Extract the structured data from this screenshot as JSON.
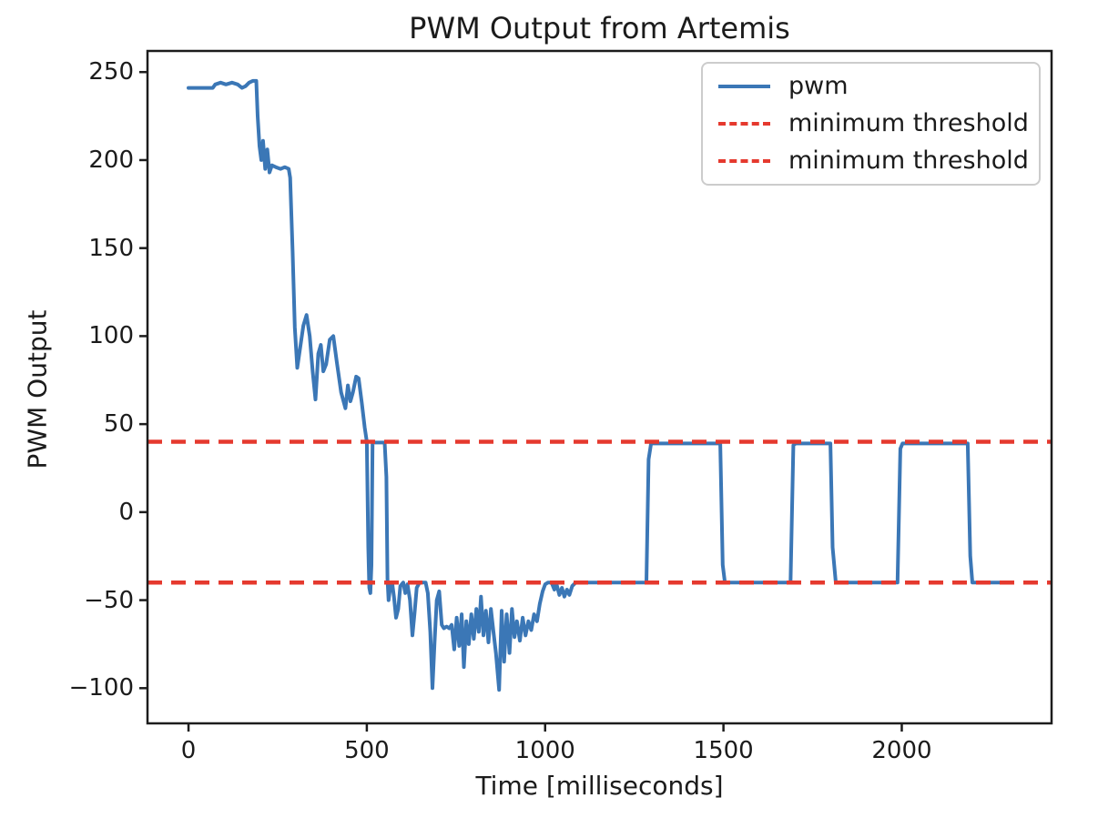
{
  "chart_data": {
    "type": "line",
    "title": "PWM Output from Artemis",
    "xlabel": "Time [milliseconds]",
    "ylabel": "PWM Output",
    "xlim": [
      -115,
      2420
    ],
    "ylim": [
      -120,
      262
    ],
    "xticks": [
      0,
      500,
      1000,
      1500,
      2000
    ],
    "yticks": [
      250,
      200,
      150,
      100,
      50,
      0,
      -50,
      -100
    ],
    "grid": false,
    "legend_position": "upper right",
    "legend": [
      {
        "label": "pwm",
        "style": "solid",
        "color": "#3b77b6"
      },
      {
        "label": "minimum threshold",
        "style": "dashed",
        "color": "#e5392e"
      },
      {
        "label": "minimum threshold",
        "style": "dashed",
        "color": "#e5392e"
      }
    ],
    "series": [
      {
        "name": "pwm",
        "color": "#3b77b6",
        "style": "solid",
        "x": [
          0,
          30,
          55,
          68,
          75,
          90,
          105,
          122,
          138,
          150,
          160,
          170,
          180,
          190,
          194,
          199,
          204,
          209,
          215,
          221,
          227,
          234,
          245,
          258,
          270,
          281,
          285,
          292,
          298,
          305,
          312,
          322,
          331,
          340,
          348,
          356,
          364,
          371,
          378,
          386,
          396,
          406,
          416,
          428,
          440,
          447,
          454,
          461,
          470,
          477,
          486,
          494,
          500,
          504,
          507,
          510,
          513,
          516,
          520,
          550,
          555,
          558,
          561,
          566,
          571,
          576,
          582,
          588,
          594,
          602,
          608,
          614,
          621,
          628,
          634,
          640,
          648,
          656,
          665,
          671,
          678,
          684,
          690,
          696,
          703,
          710,
          716,
          724,
          731,
          738,
          745,
          752,
          759,
          766,
          772,
          779,
          786,
          793,
          800,
          807,
          814,
          820,
          827,
          834,
          841,
          848,
          855,
          862,
          871,
          878,
          885,
          892,
          900,
          907,
          914,
          921,
          929,
          937,
          945,
          953,
          961,
          969,
          977,
          985,
          993,
          1000,
          1008,
          1018,
          1026,
          1032,
          1040,
          1047,
          1054,
          1061,
          1068,
          1076,
          1086,
          1098,
          1110,
          1284,
          1290,
          1297,
          1320,
          1430,
          1491,
          1498,
          1504,
          1560,
          1688,
          1696,
          1703,
          1800,
          1806,
          1815,
          1900,
          1988,
          1996,
          2002,
          2100,
          2185,
          2192,
          2198,
          2250,
          2305
        ],
        "y": [
          241,
          241,
          241,
          241,
          243,
          244,
          243,
          244,
          243,
          241,
          242,
          244,
          245,
          245,
          225,
          208,
          200,
          211,
          195,
          206,
          193,
          197,
          196,
          195,
          196,
          195,
          190,
          148,
          105,
          82,
          92,
          106,
          112,
          100,
          80,
          64,
          90,
          95,
          80,
          84,
          98,
          100,
          85,
          68,
          59,
          72,
          63,
          68,
          77,
          76,
          62,
          48,
          40,
          -20,
          -43,
          -46,
          -30,
          39,
          39.5,
          39.5,
          20,
          -38,
          -50,
          -42,
          -40,
          -48,
          -60,
          -55,
          -42,
          -40,
          -46,
          -41,
          -50,
          -70,
          -57,
          -43,
          -40,
          -40,
          -40,
          -46,
          -68,
          -100,
          -74,
          -50,
          -45,
          -64,
          -66,
          -65,
          -66,
          -64,
          -78,
          -60,
          -76,
          -58,
          -88,
          -62,
          -75,
          -58,
          -72,
          -55,
          -68,
          -48,
          -70,
          -56,
          -74,
          -55,
          -68,
          -80,
          -101,
          -56,
          -85,
          -58,
          -80,
          -55,
          -71,
          -62,
          -73,
          -60,
          -70,
          -62,
          -67,
          -58,
          -62,
          -52,
          -45,
          -41,
          -40,
          -40,
          -44,
          -41,
          -47,
          -43,
          -48,
          -44,
          -47,
          -42,
          -40,
          -40,
          -40,
          -40,
          30,
          39,
          39,
          39,
          39,
          -30,
          -40,
          -40,
          -40,
          38,
          39,
          39,
          -20,
          -40,
          -40,
          -40,
          36,
          39,
          39,
          39,
          -25,
          -40,
          -40,
          -40
        ]
      },
      {
        "name": "minimum threshold",
        "color": "#e5392e",
        "style": "dashed",
        "const_y": 40
      },
      {
        "name": "minimum threshold",
        "color": "#e5392e",
        "style": "dashed",
        "const_y": -40
      }
    ]
  },
  "colors": {
    "axis": "#1c1c1c",
    "text": "#1b1b1b",
    "legend_border": "#cccccc",
    "background": "#ffffff"
  }
}
